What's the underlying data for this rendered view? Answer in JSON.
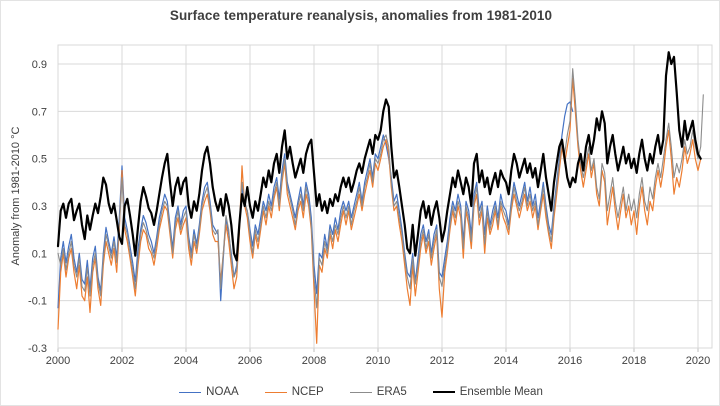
{
  "title": "Surface temperature reanalysis, anomalies from 1981-2010",
  "chart_data": {
    "type": "line",
    "title": "Surface temperature reanalysis, anomalies from 1981-2010",
    "xlabel": "",
    "ylabel": "Anomaly from 1981-2010 °C",
    "x_unit": "months since January 2000",
    "xlim": [
      2000,
      2020.45
    ],
    "ylim": [
      -0.3,
      0.98
    ],
    "grid": true,
    "legend_position": "bottom",
    "x_ticks": [
      2000,
      2002,
      2004,
      2006,
      2008,
      2010,
      2012,
      2014,
      2016,
      2018,
      2020
    ],
    "x_tick_labels": [
      "2000",
      "2002",
      "2004",
      "2006",
      "2008",
      "2010",
      "2012",
      "2014",
      "2016",
      "2018",
      "2020"
    ],
    "y_ticks": [
      -0.3,
      -0.1,
      0.1,
      0.3,
      0.5,
      0.7,
      0.9
    ],
    "y_tick_labels": [
      "-0.3",
      "-0.1",
      "0.1",
      "0.3",
      "0.5",
      "0.7",
      "0.9"
    ],
    "series": [
      {
        "name": "NOAA",
        "color": "#4472C4",
        "line_width": 1.2,
        "start_year": 2000,
        "values": [
          -0.13,
          0.08,
          0.15,
          0.06,
          0.13,
          0.18,
          0.08,
          0.02,
          0.1,
          -0.01,
          -0.03,
          0.07,
          -0.05,
          0.08,
          0.13,
          0.0,
          -0.06,
          0.1,
          0.21,
          0.15,
          0.1,
          0.17,
          0.08,
          0.25,
          0.47,
          0.25,
          0.2,
          0.13,
          0.06,
          -0.02,
          0.12,
          0.2,
          0.26,
          0.23,
          0.18,
          0.15,
          0.1,
          0.17,
          0.25,
          0.3,
          0.35,
          0.32,
          0.22,
          0.12,
          0.25,
          0.3,
          0.22,
          0.28,
          0.3,
          0.17,
          0.1,
          0.2,
          0.14,
          0.22,
          0.32,
          0.38,
          0.4,
          0.32,
          0.22,
          0.2,
          0.18,
          -0.1,
          0.08,
          0.25,
          0.18,
          0.1,
          0.0,
          0.05,
          0.22,
          0.38,
          0.3,
          0.28,
          0.2,
          0.13,
          0.22,
          0.18,
          0.25,
          0.32,
          0.28,
          0.35,
          0.3,
          0.38,
          0.42,
          0.33,
          0.45,
          0.52,
          0.4,
          0.35,
          0.3,
          0.25,
          0.32,
          0.38,
          0.3,
          0.4,
          0.35,
          0.25,
          0.05,
          -0.07,
          0.1,
          0.08,
          0.18,
          0.12,
          0.22,
          0.18,
          0.25,
          0.2,
          0.28,
          0.32,
          0.28,
          0.32,
          0.25,
          0.3,
          0.35,
          0.4,
          0.32,
          0.4,
          0.45,
          0.5,
          0.42,
          0.52,
          0.5,
          0.55,
          0.6,
          0.56,
          0.5,
          0.42,
          0.32,
          0.35,
          0.28,
          0.2,
          0.1,
          0.02,
          0.0,
          0.1,
          -0.02,
          0.08,
          0.18,
          0.22,
          0.15,
          0.2,
          0.1,
          0.18,
          0.22,
          0.02,
          0.0,
          0.08,
          0.15,
          0.25,
          0.32,
          0.28,
          0.35,
          0.3,
          0.15,
          0.32,
          0.28,
          0.18,
          0.35,
          0.4,
          0.28,
          0.32,
          0.18,
          0.3,
          0.22,
          0.28,
          0.32,
          0.25,
          0.35,
          0.3,
          0.28,
          0.22,
          0.32,
          0.4,
          0.35,
          0.3,
          0.35,
          0.4,
          0.32,
          0.38,
          0.3,
          0.35,
          0.25,
          0.32,
          0.4,
          0.3,
          0.22,
          0.18,
          0.3,
          0.4,
          0.5,
          0.6,
          0.68,
          0.73,
          0.74,
          0.7
        ]
      },
      {
        "name": "NCEP",
        "color": "#ED7D31",
        "line_width": 1.2,
        "start_year": 2000,
        "values": [
          -0.22,
          0.02,
          0.1,
          0.0,
          0.08,
          0.12,
          0.02,
          -0.05,
          0.05,
          -0.08,
          -0.1,
          0.0,
          -0.15,
          0.02,
          0.08,
          -0.05,
          -0.12,
          0.05,
          0.15,
          0.1,
          0.05,
          0.12,
          0.02,
          0.2,
          0.45,
          0.2,
          0.15,
          0.08,
          0.0,
          -0.08,
          0.05,
          0.15,
          0.2,
          0.18,
          0.12,
          0.1,
          0.05,
          0.12,
          0.2,
          0.25,
          0.3,
          0.28,
          0.18,
          0.08,
          0.2,
          0.25,
          0.18,
          0.22,
          0.25,
          0.12,
          0.05,
          0.15,
          0.1,
          0.18,
          0.28,
          0.32,
          0.35,
          0.28,
          0.18,
          0.15,
          0.15,
          -0.02,
          0.1,
          0.22,
          0.15,
          0.05,
          -0.05,
          0.0,
          0.18,
          0.47,
          0.3,
          0.25,
          0.15,
          0.08,
          0.18,
          0.12,
          0.2,
          0.28,
          0.22,
          0.3,
          0.25,
          0.33,
          0.38,
          0.28,
          0.4,
          0.48,
          0.35,
          0.3,
          0.25,
          0.2,
          0.28,
          0.32,
          0.25,
          0.35,
          0.3,
          0.2,
          -0.05,
          -0.28,
          0.05,
          0.02,
          0.12,
          0.08,
          0.18,
          0.12,
          0.2,
          0.15,
          0.22,
          0.28,
          0.22,
          0.28,
          0.2,
          0.25,
          0.3,
          0.35,
          0.28,
          0.35,
          0.4,
          0.45,
          0.38,
          0.48,
          0.45,
          0.5,
          0.55,
          0.58,
          0.52,
          0.38,
          0.28,
          0.3,
          0.22,
          0.15,
          0.05,
          -0.05,
          -0.12,
          0.05,
          -0.08,
          0.02,
          0.12,
          0.18,
          0.1,
          0.15,
          0.05,
          0.12,
          0.18,
          -0.05,
          -0.17,
          0.02,
          0.1,
          0.2,
          0.28,
          0.22,
          0.3,
          0.25,
          0.08,
          0.28,
          0.22,
          0.12,
          0.3,
          0.35,
          0.22,
          0.28,
          0.1,
          0.25,
          0.18,
          0.22,
          0.28,
          0.2,
          0.3,
          0.25,
          0.22,
          0.18,
          0.28,
          0.35,
          0.3,
          0.25,
          0.3,
          0.35,
          0.28,
          0.32,
          0.25,
          0.3,
          0.2,
          0.28,
          0.35,
          0.25,
          0.18,
          0.12,
          0.25,
          0.35,
          0.45,
          0.55,
          0.48,
          0.55,
          0.62,
          0.84,
          0.7,
          0.55,
          0.45,
          0.38,
          0.45,
          0.52,
          0.42,
          0.48,
          0.35,
          0.3,
          0.45,
          0.4,
          0.22,
          0.3,
          0.38,
          0.28,
          0.2,
          0.28,
          0.35,
          0.25,
          0.3,
          0.22,
          0.28,
          0.18,
          0.3,
          0.38,
          0.28,
          0.22,
          0.32,
          0.28,
          0.38,
          0.45,
          0.38,
          0.45,
          0.55,
          0.62,
          0.5,
          0.35,
          0.42,
          0.38,
          0.45,
          0.55,
          0.48,
          0.52,
          0.58,
          0.5,
          0.45,
          0.5
        ]
      },
      {
        "name": "ERA5",
        "color": "#8C8C8C",
        "line_width": 1.1,
        "start_year": 2000,
        "values": [
          0.1,
          0.05,
          0.12,
          0.03,
          0.1,
          0.15,
          0.05,
          0.0,
          0.08,
          -0.04,
          -0.06,
          0.04,
          -0.08,
          0.05,
          0.1,
          -0.02,
          -0.08,
          0.08,
          0.18,
          0.13,
          0.08,
          0.15,
          0.06,
          0.22,
          0.42,
          0.22,
          0.18,
          0.1,
          0.03,
          -0.05,
          0.08,
          0.18,
          0.23,
          0.2,
          0.15,
          0.12,
          0.08,
          0.15,
          0.22,
          0.28,
          0.32,
          0.3,
          0.2,
          0.1,
          0.22,
          0.28,
          0.2,
          0.25,
          0.28,
          0.15,
          0.08,
          0.18,
          0.12,
          0.2,
          0.3,
          0.35,
          0.38,
          0.3,
          0.2,
          0.18,
          0.2,
          -0.05,
          0.1,
          0.26,
          0.2,
          0.08,
          0.0,
          0.03,
          0.2,
          0.4,
          0.32,
          0.28,
          0.18,
          0.1,
          0.2,
          0.15,
          0.22,
          0.3,
          0.25,
          0.32,
          0.28,
          0.35,
          0.4,
          0.3,
          0.42,
          0.5,
          0.38,
          0.33,
          0.28,
          0.22,
          0.3,
          0.35,
          0.28,
          0.38,
          0.32,
          0.22,
          0.0,
          -0.13,
          0.08,
          0.05,
          0.15,
          0.1,
          0.2,
          0.15,
          0.22,
          0.18,
          0.25,
          0.3,
          0.25,
          0.3,
          0.22,
          0.28,
          0.32,
          0.38,
          0.3,
          0.38,
          0.42,
          0.48,
          0.4,
          0.5,
          0.48,
          0.52,
          0.58,
          0.6,
          0.55,
          0.4,
          0.3,
          0.32,
          0.25,
          0.18,
          0.08,
          0.0,
          -0.05,
          0.08,
          -0.03,
          0.05,
          0.15,
          0.2,
          0.12,
          0.18,
          0.08,
          0.15,
          0.2,
          0.0,
          -0.04,
          0.05,
          0.12,
          0.22,
          0.3,
          0.25,
          0.32,
          0.28,
          0.12,
          0.3,
          0.25,
          0.15,
          0.32,
          0.38,
          0.25,
          0.3,
          0.14,
          0.28,
          0.2,
          0.25,
          0.3,
          0.22,
          0.32,
          0.28,
          0.25,
          0.2,
          0.3,
          0.38,
          0.32,
          0.28,
          0.32,
          0.38,
          0.3,
          0.35,
          0.28,
          0.32,
          0.22,
          0.3,
          0.38,
          0.28,
          0.2,
          0.15,
          0.28,
          0.38,
          0.48,
          0.58,
          0.52,
          0.6,
          0.66,
          0.88,
          0.75,
          0.58,
          0.48,
          0.42,
          0.48,
          0.55,
          0.45,
          0.5,
          0.38,
          0.33,
          0.48,
          0.44,
          0.28,
          0.35,
          0.42,
          0.32,
          0.25,
          0.32,
          0.38,
          0.28,
          0.35,
          0.28,
          0.33,
          0.25,
          0.35,
          0.42,
          0.32,
          0.28,
          0.38,
          0.33,
          0.42,
          0.48,
          0.42,
          0.5,
          0.58,
          0.65,
          0.55,
          0.42,
          0.48,
          0.44,
          0.5,
          0.58,
          0.52,
          0.55,
          0.62,
          0.55,
          0.5,
          0.55,
          0.77
        ]
      },
      {
        "name": "Ensemble Mean",
        "color": "#000000",
        "line_width": 2.2,
        "start_year": 2000,
        "values": [
          0.13,
          0.28,
          0.31,
          0.25,
          0.31,
          0.33,
          0.24,
          0.28,
          0.31,
          0.22,
          0.16,
          0.26,
          0.2,
          0.26,
          0.31,
          0.27,
          0.34,
          0.42,
          0.39,
          0.31,
          0.27,
          0.31,
          0.24,
          0.17,
          0.14,
          0.3,
          0.33,
          0.26,
          0.18,
          0.09,
          0.21,
          0.32,
          0.38,
          0.34,
          0.29,
          0.27,
          0.22,
          0.28,
          0.35,
          0.42,
          0.48,
          0.52,
          0.4,
          0.3,
          0.38,
          0.42,
          0.35,
          0.4,
          0.42,
          0.3,
          0.25,
          0.32,
          0.28,
          0.35,
          0.45,
          0.52,
          0.55,
          0.48,
          0.38,
          0.32,
          0.28,
          0.33,
          0.26,
          0.35,
          0.3,
          0.22,
          0.1,
          0.07,
          0.22,
          0.35,
          0.3,
          0.38,
          0.3,
          0.25,
          0.32,
          0.28,
          0.35,
          0.42,
          0.38,
          0.45,
          0.4,
          0.48,
          0.52,
          0.44,
          0.55,
          0.62,
          0.5,
          0.55,
          0.48,
          0.42,
          0.46,
          0.5,
          0.44,
          0.52,
          0.56,
          0.58,
          0.44,
          0.3,
          0.35,
          0.28,
          0.32,
          0.27,
          0.33,
          0.3,
          0.35,
          0.32,
          0.38,
          0.42,
          0.38,
          0.42,
          0.36,
          0.4,
          0.45,
          0.48,
          0.44,
          0.5,
          0.54,
          0.58,
          0.52,
          0.6,
          0.58,
          0.62,
          0.7,
          0.75,
          0.72,
          0.55,
          0.42,
          0.45,
          0.38,
          0.3,
          0.22,
          0.12,
          0.1,
          0.22,
          0.09,
          0.18,
          0.28,
          0.32,
          0.25,
          0.3,
          0.22,
          0.28,
          0.32,
          0.25,
          0.15,
          0.2,
          0.28,
          0.35,
          0.42,
          0.38,
          0.45,
          0.4,
          0.35,
          0.42,
          0.38,
          0.3,
          0.48,
          0.52,
          0.4,
          0.45,
          0.38,
          0.42,
          0.35,
          0.4,
          0.44,
          0.38,
          0.45,
          0.42,
          0.4,
          0.35,
          0.45,
          0.52,
          0.48,
          0.42,
          0.46,
          0.5,
          0.44,
          0.48,
          0.42,
          0.46,
          0.38,
          0.45,
          0.52,
          0.42,
          0.35,
          0.28,
          0.4,
          0.48,
          0.55,
          0.58,
          0.5,
          0.42,
          0.38,
          0.42,
          0.4,
          0.48,
          0.52,
          0.45,
          0.55,
          0.6,
          0.52,
          0.58,
          0.67,
          0.62,
          0.7,
          0.65,
          0.48,
          0.55,
          0.6,
          0.52,
          0.45,
          0.5,
          0.55,
          0.48,
          0.52,
          0.46,
          0.5,
          0.44,
          0.52,
          0.58,
          0.5,
          0.45,
          0.52,
          0.48,
          0.55,
          0.6,
          0.52,
          0.58,
          0.85,
          0.95,
          0.9,
          0.93,
          0.78,
          0.62,
          0.55,
          0.66,
          0.58,
          0.62,
          0.66,
          0.58,
          0.52,
          0.5
        ]
      }
    ],
    "style": {
      "grid_color": "#D9D9D9",
      "axis_color": "#BFBFBF",
      "tick_label_color": "#404040",
      "title_color": "#3F3F3F",
      "background": "#FFFFFF"
    }
  }
}
